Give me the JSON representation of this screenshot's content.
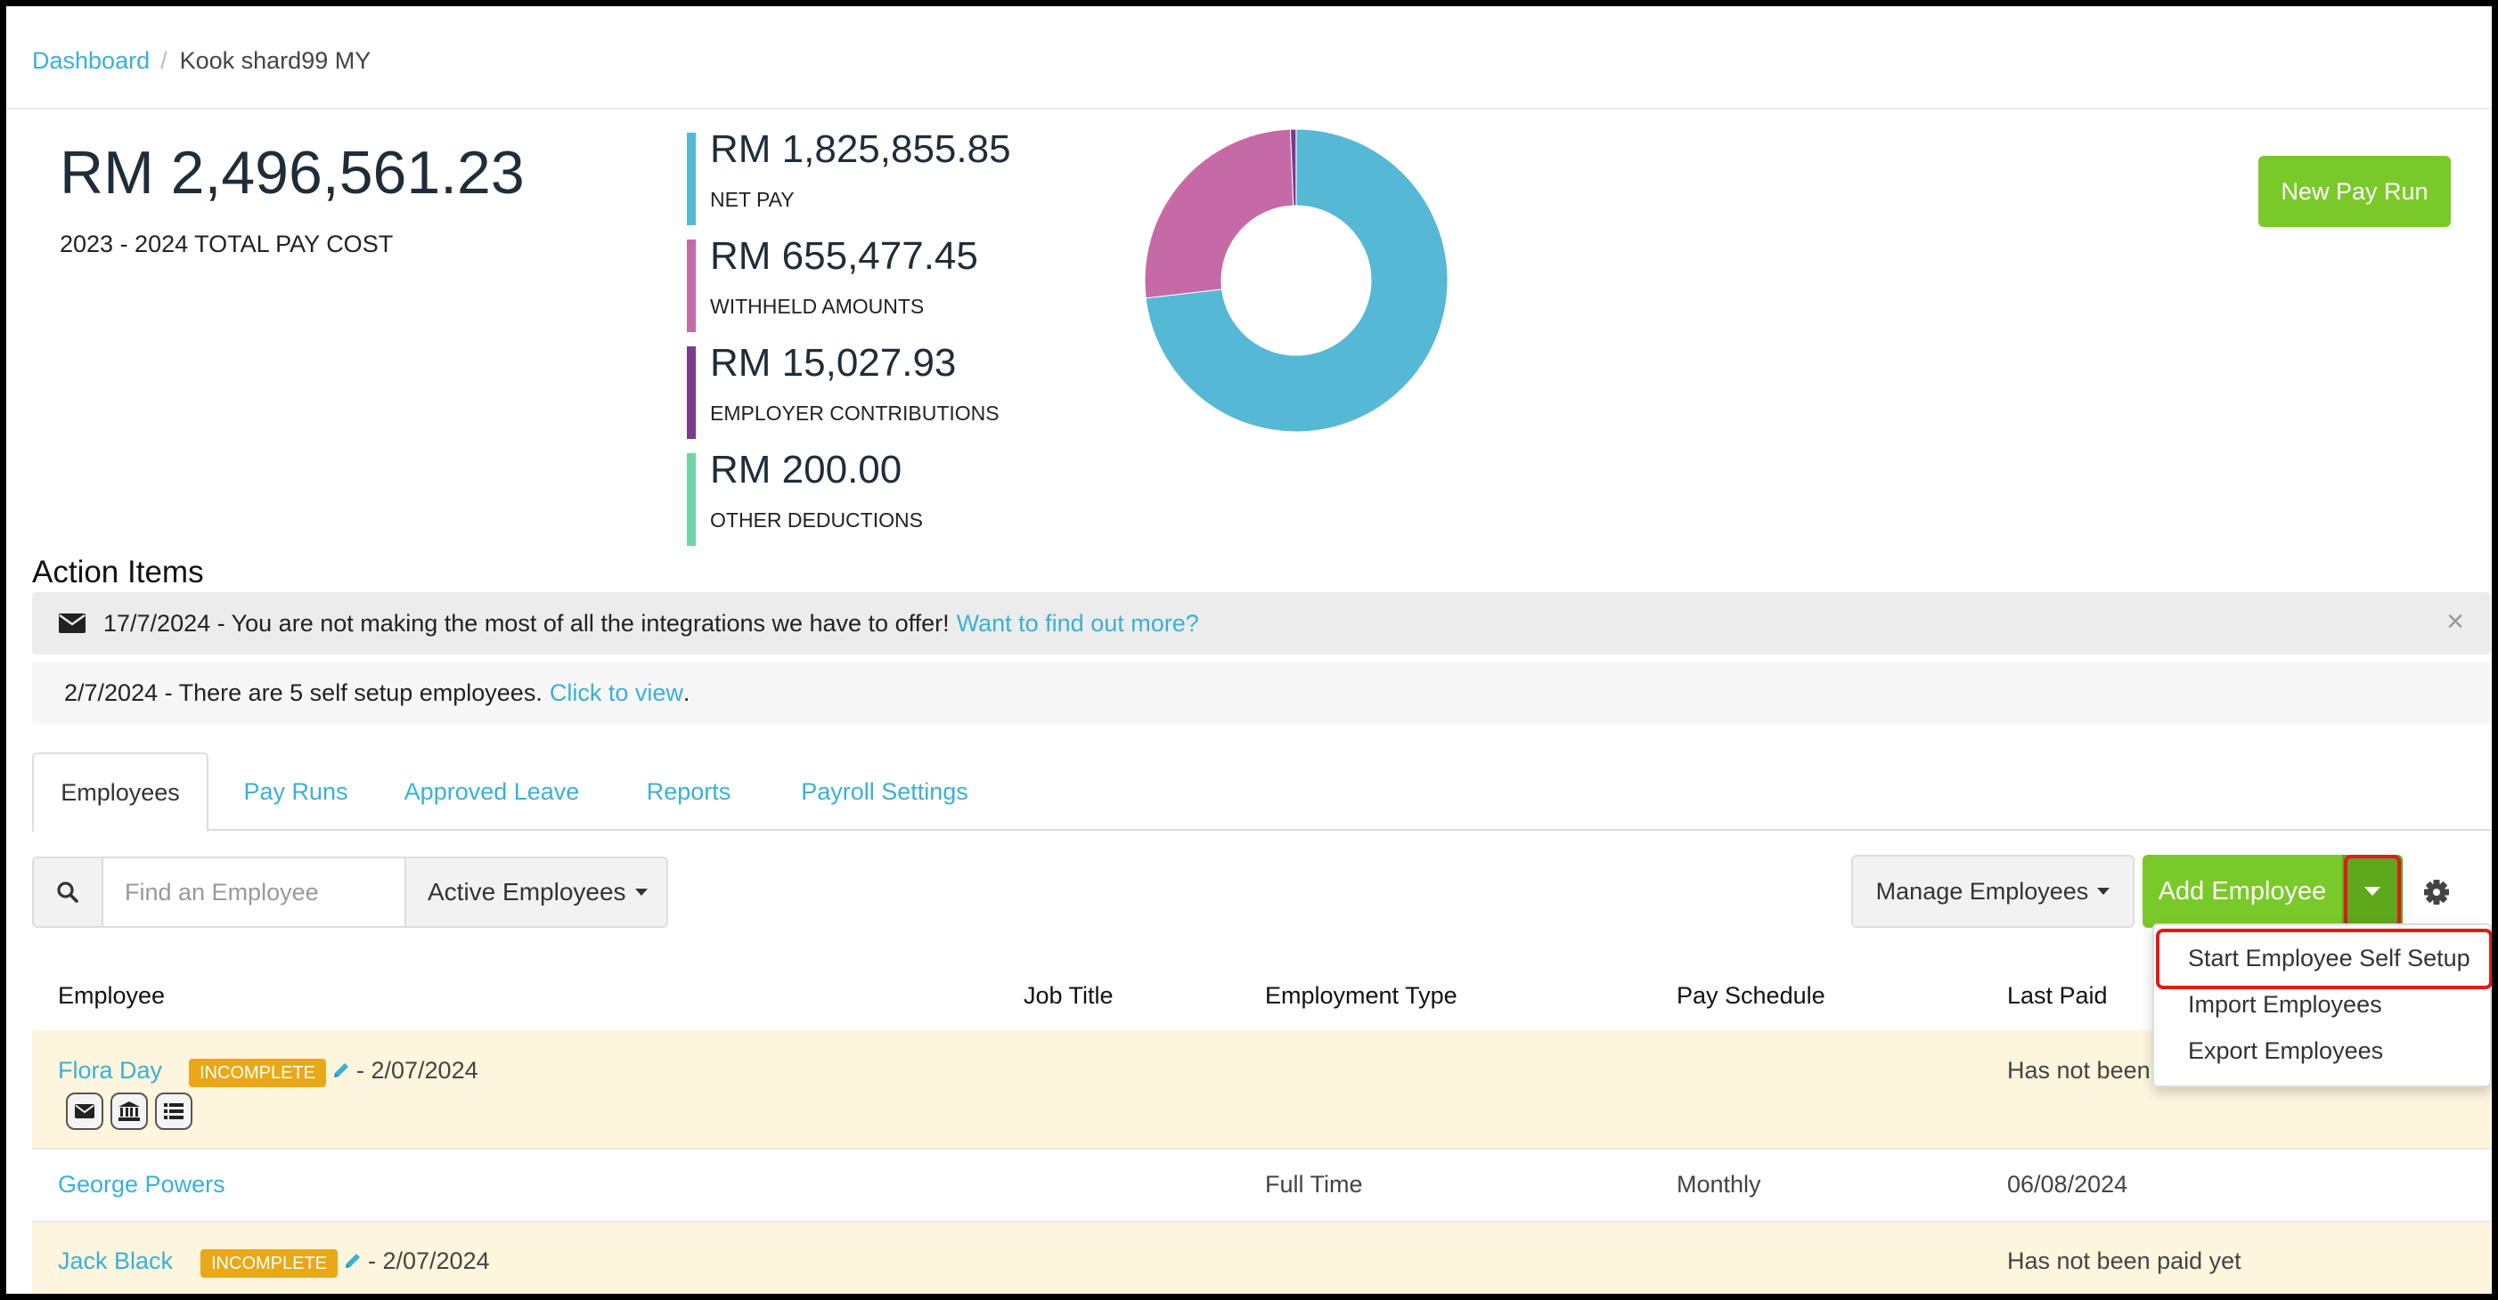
{
  "breadcrumb": {
    "home": "Dashboard",
    "separator": "/",
    "current": "Kook shard99 MY"
  },
  "summary": {
    "total_amount": "RM 2,496,561.23",
    "total_label": "2023 - 2024 TOTAL PAY COST",
    "metrics": [
      {
        "value": "RM 1,825,855.85",
        "label": "NET PAY",
        "color": "#55b8d5"
      },
      {
        "value": "RM 655,477.45",
        "label": "WITHHELD AMOUNTS",
        "color": "#c56aa6"
      },
      {
        "value": "RM 15,027.93",
        "label": "EMPLOYER CONTRIBUTIONS",
        "color": "#7b3a8e"
      },
      {
        "value": "RM 200.00",
        "label": "OTHER DEDUCTIONS",
        "color": "#6fd6a3"
      }
    ]
  },
  "chart_data": {
    "type": "pie",
    "categories": [
      "NET PAY",
      "WITHHELD AMOUNTS",
      "EMPLOYER CONTRIBUTIONS",
      "OTHER DEDUCTIONS"
    ],
    "values": [
      1825855.85,
      655477.45,
      15027.93,
      200.0
    ],
    "colors": [
      "#55b8d5",
      "#c56aa6",
      "#7b3a8e",
      "#6fd6a3"
    ],
    "donut": true
  },
  "new_pay_run_label": "New Pay Run",
  "action_items": {
    "title": "Action Items",
    "notice1": {
      "icon": "envelope-icon",
      "text": "17/7/2024 - You are not making the most of all the integrations we have to offer!",
      "link": "Want to find out more?",
      "close": "×"
    },
    "notice2": {
      "text": "2/7/2024 - There are 5 self setup employees.",
      "link": "Click to view",
      "suffix": "."
    }
  },
  "tabs": [
    "Employees",
    "Pay Runs",
    "Approved Leave",
    "Reports",
    "Payroll Settings"
  ],
  "toolbar": {
    "search_placeholder": "Find an Employee",
    "filter_label": "Active Employees",
    "manage_label": "Manage Employees",
    "add_label": "Add Employee"
  },
  "dropdown": [
    "Start Employee Self Setup",
    "Import Employees",
    "Export Employees"
  ],
  "table": {
    "headers": [
      "Employee",
      "Job Title",
      "Employment Type",
      "Pay Schedule",
      "Last Paid"
    ],
    "rows": [
      {
        "name": "Flora Day",
        "badge": "INCOMPLETE",
        "date": "- 2/07/2024",
        "job_title": "",
        "employment_type": "",
        "pay_schedule": "",
        "last_paid": "Has not been"
      },
      {
        "name": "George Powers",
        "badge": "",
        "date": "",
        "job_title": "",
        "employment_type": "Full Time",
        "pay_schedule": "Monthly",
        "last_paid": "06/08/2024"
      },
      {
        "name": "Jack Black",
        "badge": "INCOMPLETE",
        "date": "- 2/07/2024",
        "job_title": "",
        "employment_type": "",
        "pay_schedule": "",
        "last_paid": "Has not been paid yet"
      }
    ]
  }
}
